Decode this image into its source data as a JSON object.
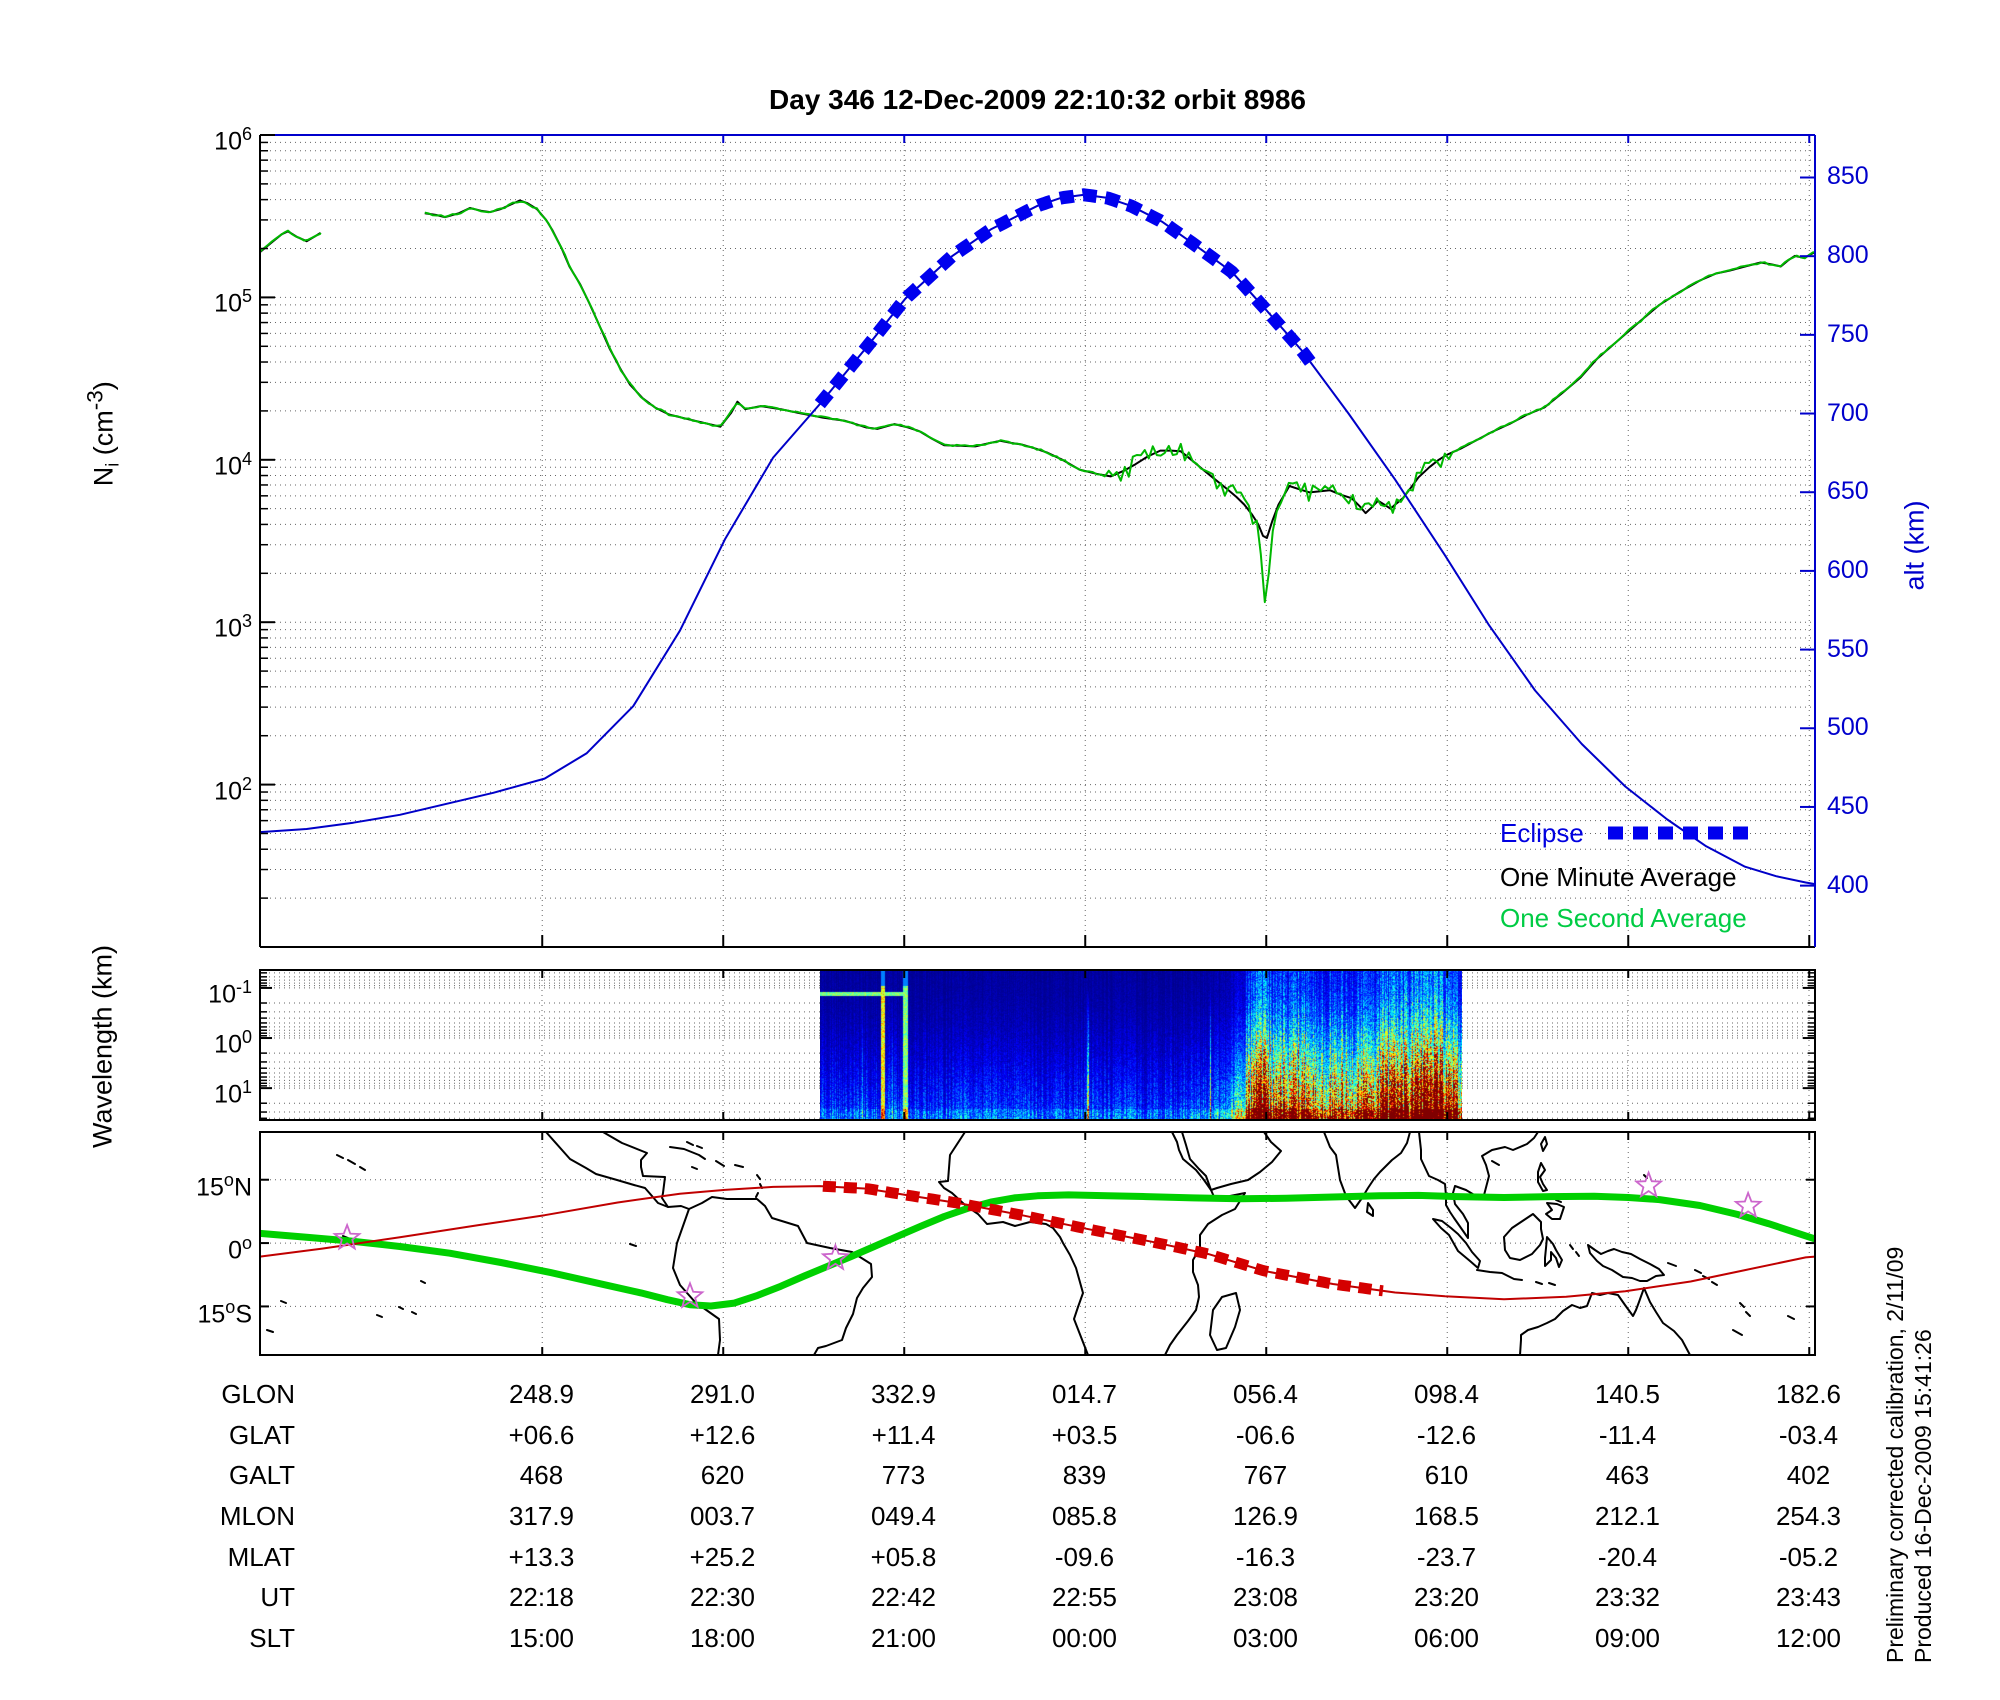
{
  "title": "Day 346  12-Dec-2009 22:10:32   orbit 8986",
  "colors": {
    "blue_curve": "#0000c8",
    "blue_axis": "#0000cc",
    "eclipse_blue": "#0000ee",
    "green_curve": "#00b800",
    "green_map": "#00d000",
    "legend_green": "#00cc44",
    "red_track": "#c00000",
    "red_dash": "#d40000",
    "magenta_star": "#cc66cc",
    "grid": "#666666",
    "black": "#000000"
  },
  "legend": {
    "eclipse": "Eclipse",
    "minute": "One Minute Average",
    "second": "One Second Average"
  },
  "notes": {
    "line1": "Preliminary corrected calibration, 2/11/09",
    "line2": "Produced 16-Dec-2009 15:41:26"
  },
  "axes": {
    "ni": {
      "pre": "N",
      "sub": "i",
      "mid": " (cm",
      "sup": "-3",
      "post": ")",
      "tick_exps": [
        6,
        5,
        4,
        3,
        2
      ],
      "log_range": [
        1,
        6
      ]
    },
    "alt": {
      "label": "alt (km)",
      "ticks": [
        850,
        800,
        750,
        700,
        650,
        600,
        550,
        500,
        450,
        400
      ],
      "range": [
        361,
        877
      ]
    },
    "wl": {
      "label": "Wavelength (km)",
      "tick_exps": [
        -1,
        0,
        1
      ],
      "log_range": [
        -1.358,
        1.636
      ]
    },
    "map": {
      "lat_ticks": [
        {
          "value": 15,
          "num": "15",
          "deg": "o",
          "hemi": "N"
        },
        {
          "value": 0,
          "num": "0",
          "deg": "o",
          "hemi": ""
        },
        {
          "value": -15,
          "num": "15",
          "deg": "o",
          "hemi": "S"
        }
      ],
      "lat_range": [
        -26.5,
        26.3
      ]
    }
  },
  "col_fracs": [
    0.1815,
    0.2979,
    0.4143,
    0.5307,
    0.6471,
    0.7635,
    0.8799,
    0.9963
  ],
  "chart_data": [
    {
      "type": "line",
      "id": "density-altitude-panel",
      "ylabel": "Ni (cm-3)",
      "y2label": "alt (km)",
      "ni_minute_a": [
        [
          0.0,
          190000
        ],
        [
          0.008,
          220000
        ],
        [
          0.014,
          245000
        ],
        [
          0.018,
          255000
        ],
        [
          0.024,
          235000
        ],
        [
          0.03,
          222000
        ],
        [
          0.036,
          240000
        ],
        [
          0.039,
          250000
        ]
      ],
      "ni_minute_b": [
        [
          0.106,
          330000
        ],
        [
          0.113,
          322000
        ],
        [
          0.119,
          312000
        ],
        [
          0.128,
          330000
        ],
        [
          0.135,
          355000
        ],
        [
          0.142,
          342000
        ],
        [
          0.148,
          335000
        ],
        [
          0.155,
          350000
        ],
        [
          0.167,
          395000
        ],
        [
          0.172,
          380000
        ],
        [
          0.178,
          350000
        ],
        [
          0.184,
          300000
        ],
        [
          0.188,
          260000
        ],
        [
          0.194,
          200000
        ],
        [
          0.199,
          155000
        ],
        [
          0.206,
          120000
        ],
        [
          0.212,
          91000
        ],
        [
          0.218,
          68000
        ],
        [
          0.225,
          48000
        ],
        [
          0.232,
          36000
        ],
        [
          0.238,
          29000
        ],
        [
          0.246,
          24000
        ],
        [
          0.254,
          21000
        ],
        [
          0.263,
          19000
        ],
        [
          0.273,
          18000
        ],
        [
          0.284,
          17000
        ],
        [
          0.296,
          16000
        ],
        [
          0.303,
          19500
        ],
        [
          0.307,
          22800
        ],
        [
          0.312,
          20500
        ],
        [
          0.322,
          21400
        ],
        [
          0.335,
          20500
        ],
        [
          0.347,
          19400
        ],
        [
          0.362,
          18200
        ],
        [
          0.376,
          17400
        ],
        [
          0.39,
          15800
        ],
        [
          0.397,
          15500
        ],
        [
          0.408,
          16600
        ],
        [
          0.417,
          15800
        ],
        [
          0.424,
          15000
        ],
        [
          0.432,
          13500
        ],
        [
          0.44,
          12300
        ],
        [
          0.45,
          12200
        ],
        [
          0.46,
          12100
        ],
        [
          0.468,
          12600
        ],
        [
          0.476,
          13100
        ],
        [
          0.483,
          12700
        ],
        [
          0.49,
          12400
        ],
        [
          0.499,
          11700
        ],
        [
          0.506,
          11100
        ],
        [
          0.516,
          10000
        ],
        [
          0.527,
          8700
        ],
        [
          0.538,
          8200
        ],
        [
          0.547,
          7900
        ],
        [
          0.556,
          8600
        ],
        [
          0.563,
          9400
        ],
        [
          0.571,
          10500
        ],
        [
          0.579,
          11400
        ],
        [
          0.586,
          11400
        ],
        [
          0.592,
          11300
        ],
        [
          0.6,
          9800
        ],
        [
          0.607,
          8600
        ],
        [
          0.614,
          7600
        ],
        [
          0.622,
          6600
        ],
        [
          0.628,
          5900
        ],
        [
          0.633,
          5300
        ],
        [
          0.638,
          4600
        ],
        [
          0.642,
          4000
        ],
        [
          0.645,
          3400
        ],
        [
          0.6475,
          3300
        ],
        [
          0.651,
          4200
        ],
        [
          0.655,
          5300
        ],
        [
          0.662,
          6900
        ],
        [
          0.668,
          6600
        ],
        [
          0.675,
          6300
        ],
        [
          0.682,
          6400
        ],
        [
          0.688,
          6500
        ],
        [
          0.695,
          6100
        ],
        [
          0.702,
          5800
        ],
        [
          0.707,
          5200
        ],
        [
          0.711,
          4700
        ],
        [
          0.715,
          5100
        ],
        [
          0.719,
          5600
        ],
        [
          0.723,
          5300
        ],
        [
          0.727,
          5000
        ],
        [
          0.731,
          5400
        ],
        [
          0.735,
          5800
        ],
        [
          0.74,
          6700
        ],
        [
          0.745,
          7800
        ],
        [
          0.752,
          9000
        ],
        [
          0.758,
          10000
        ],
        [
          0.763,
          10700
        ],
        [
          0.772,
          11700
        ],
        [
          0.781,
          13000
        ],
        [
          0.792,
          14800
        ],
        [
          0.804,
          16700
        ],
        [
          0.815,
          19000
        ],
        [
          0.826,
          21000
        ],
        [
          0.838,
          26000
        ],
        [
          0.849,
          32000
        ],
        [
          0.86,
          42000
        ],
        [
          0.875,
          56000
        ],
        [
          0.888,
          72000
        ],
        [
          0.9,
          90000
        ],
        [
          0.913,
          108000
        ],
        [
          0.926,
          127000
        ],
        [
          0.936,
          140000
        ],
        [
          0.945,
          146000
        ],
        [
          0.955,
          155000
        ],
        [
          0.965,
          164000
        ],
        [
          0.972,
          160000
        ],
        [
          0.978,
          155000
        ],
        [
          0.983,
          170000
        ],
        [
          0.987,
          180000
        ],
        [
          0.993,
          175000
        ],
        [
          1.0,
          190000
        ]
      ],
      "ni_spike": [
        [
          0.644,
          2600
        ],
        [
          0.6455,
          1600
        ],
        [
          0.647,
          1000
        ],
        [
          0.6485,
          2000
        ],
        [
          0.65,
          3200
        ]
      ],
      "noise": {
        "span": [
          0.545,
          0.765
        ],
        "amp_dec": 0.055
      },
      "alt_series": [
        [
          0.0,
          434
        ],
        [
          0.03,
          436
        ],
        [
          0.06,
          440
        ],
        [
          0.09,
          445
        ],
        [
          0.12,
          452
        ],
        [
          0.15,
          459
        ],
        [
          0.183,
          468
        ],
        [
          0.21,
          484
        ],
        [
          0.24,
          514
        ],
        [
          0.27,
          562
        ],
        [
          0.299,
          620
        ],
        [
          0.33,
          672
        ],
        [
          0.36,
          706
        ],
        [
          0.39,
          742
        ],
        [
          0.415,
          773
        ],
        [
          0.445,
          800
        ],
        [
          0.47,
          817
        ],
        [
          0.5,
          832
        ],
        [
          0.515,
          837
        ],
        [
          0.53,
          839
        ],
        [
          0.545,
          837
        ],
        [
          0.56,
          832
        ],
        [
          0.58,
          822
        ],
        [
          0.6,
          808
        ],
        [
          0.625,
          790
        ],
        [
          0.646,
          767
        ],
        [
          0.67,
          740
        ],
        [
          0.7,
          700
        ],
        [
          0.73,
          658
        ],
        [
          0.762,
          610
        ],
        [
          0.79,
          566
        ],
        [
          0.82,
          524
        ],
        [
          0.85,
          490
        ],
        [
          0.878,
          463
        ],
        [
          0.905,
          442
        ],
        [
          0.93,
          425
        ],
        [
          0.955,
          412
        ],
        [
          0.975,
          406
        ],
        [
          0.994,
          402
        ],
        [
          1.0,
          401
        ]
      ],
      "eclipse_span": [
        0.36,
        0.6765
      ]
    },
    {
      "type": "heatmap",
      "id": "wavelength-spectrogram",
      "x_frac_span": [
        0.36,
        0.773
      ],
      "base": 0.14,
      "ramp_start": 0.55,
      "bright_lines": [
        [
          0.0966,
          2,
          1.0
        ],
        [
          0.1324,
          2.5,
          0.8
        ]
      ],
      "hot_zones": [
        [
          0.685,
          0.02,
          0.95
        ],
        [
          0.74,
          0.018,
          0.75
        ],
        [
          0.8,
          0.028,
          0.55
        ],
        [
          0.885,
          0.032,
          0.7
        ],
        [
          0.955,
          0.028,
          0.85
        ]
      ],
      "seed": 7
    },
    {
      "type": "map",
      "id": "ground-track-map",
      "sat_track": [
        [
          0.0,
          -3.2
        ],
        [
          0.04,
          -1.3
        ],
        [
          0.09,
          1.4
        ],
        [
          0.14,
          4.2
        ],
        [
          0.183,
          6.6
        ],
        [
          0.23,
          9.6
        ],
        [
          0.27,
          11.7
        ],
        [
          0.299,
          12.6
        ],
        [
          0.33,
          13.3
        ],
        [
          0.36,
          13.5
        ],
        [
          0.39,
          12.9
        ],
        [
          0.415,
          11.4
        ],
        [
          0.45,
          9.4
        ],
        [
          0.49,
          6.6
        ],
        [
          0.53,
          3.5
        ],
        [
          0.575,
          0.2
        ],
        [
          0.61,
          -2.6
        ],
        [
          0.646,
          -6.6
        ],
        [
          0.69,
          -9.7
        ],
        [
          0.73,
          -11.7
        ],
        [
          0.762,
          -12.6
        ],
        [
          0.8,
          -13.3
        ],
        [
          0.84,
          -12.7
        ],
        [
          0.878,
          -11.4
        ],
        [
          0.92,
          -9.1
        ],
        [
          0.955,
          -6.4
        ],
        [
          0.994,
          -3.4
        ],
        [
          1.0,
          -3.2
        ]
      ],
      "eclipse_span": [
        0.362,
        0.7248
      ],
      "mag_equator": [
        [
          0.0,
          2.3
        ],
        [
          0.03,
          1.4
        ],
        [
          0.058,
          0.5
        ],
        [
          0.09,
          -0.8
        ],
        [
          0.122,
          -2.4
        ],
        [
          0.155,
          -4.6
        ],
        [
          0.187,
          -7.0
        ],
        [
          0.215,
          -9.3
        ],
        [
          0.245,
          -11.8
        ],
        [
          0.262,
          -13.4
        ],
        [
          0.2765,
          -14.6
        ],
        [
          0.29,
          -14.9
        ],
        [
          0.305,
          -14.2
        ],
        [
          0.32,
          -12.4
        ],
        [
          0.335,
          -10.2
        ],
        [
          0.35,
          -7.8
        ],
        [
          0.365,
          -5.5
        ],
        [
          0.38,
          -3.2
        ],
        [
          0.395,
          -0.8
        ],
        [
          0.41,
          1.6
        ],
        [
          0.425,
          4.0
        ],
        [
          0.44,
          6.3
        ],
        [
          0.455,
          8.2
        ],
        [
          0.47,
          9.7
        ],
        [
          0.485,
          10.7
        ],
        [
          0.5,
          11.2
        ],
        [
          0.52,
          11.4
        ],
        [
          0.545,
          11.2
        ],
        [
          0.57,
          11.0
        ],
        [
          0.6,
          10.7
        ],
        [
          0.63,
          10.5
        ],
        [
          0.66,
          10.6
        ],
        [
          0.69,
          10.9
        ],
        [
          0.72,
          11.2
        ],
        [
          0.745,
          11.3
        ],
        [
          0.77,
          11.0
        ],
        [
          0.8,
          10.8
        ],
        [
          0.83,
          11.0
        ],
        [
          0.858,
          11.1
        ],
        [
          0.88,
          10.8
        ],
        [
          0.9,
          10.3
        ],
        [
          0.926,
          8.9
        ],
        [
          0.95,
          6.8
        ],
        [
          0.97,
          4.6
        ],
        [
          0.985,
          2.8
        ],
        [
          1.0,
          1.0
        ]
      ],
      "stars": [
        [
          0.056,
          1.2
        ],
        [
          0.2765,
          -12.6
        ],
        [
          0.37,
          -3.6
        ],
        [
          0.893,
          13.6
        ],
        [
          0.957,
          8.8
        ]
      ]
    }
  ],
  "table": {
    "rows": [
      {
        "label": "GLON",
        "cells": [
          "248.9",
          "291.0",
          "332.9",
          "014.7",
          "056.4",
          "098.4",
          "140.5",
          "182.6"
        ]
      },
      {
        "label": "GLAT",
        "cells": [
          "+06.6",
          "+12.6",
          "+11.4",
          "+03.5",
          "-06.6",
          "-12.6",
          "-11.4",
          "-03.4"
        ]
      },
      {
        "label": "GALT",
        "cells": [
          "468",
          "620",
          "773",
          "839",
          "767",
          "610",
          "463",
          "402"
        ]
      },
      {
        "label": "MLON",
        "cells": [
          "317.9",
          "003.7",
          "049.4",
          "085.8",
          "126.9",
          "168.5",
          "212.1",
          "254.3"
        ]
      },
      {
        "label": "MLAT",
        "cells": [
          "+13.3",
          "+25.2",
          "+05.8",
          "-09.6",
          "-16.3",
          "-23.7",
          "-20.4",
          "-05.2"
        ]
      },
      {
        "label": "UT",
        "cells": [
          "22:18",
          "22:30",
          "22:42",
          "22:55",
          "23:08",
          "23:20",
          "23:32",
          "23:43"
        ]
      },
      {
        "label": "SLT",
        "cells": [
          "15:00",
          "18:00",
          "21:00",
          "00:00",
          "03:00",
          "06:00",
          "09:00",
          "12:00"
        ]
      }
    ]
  }
}
